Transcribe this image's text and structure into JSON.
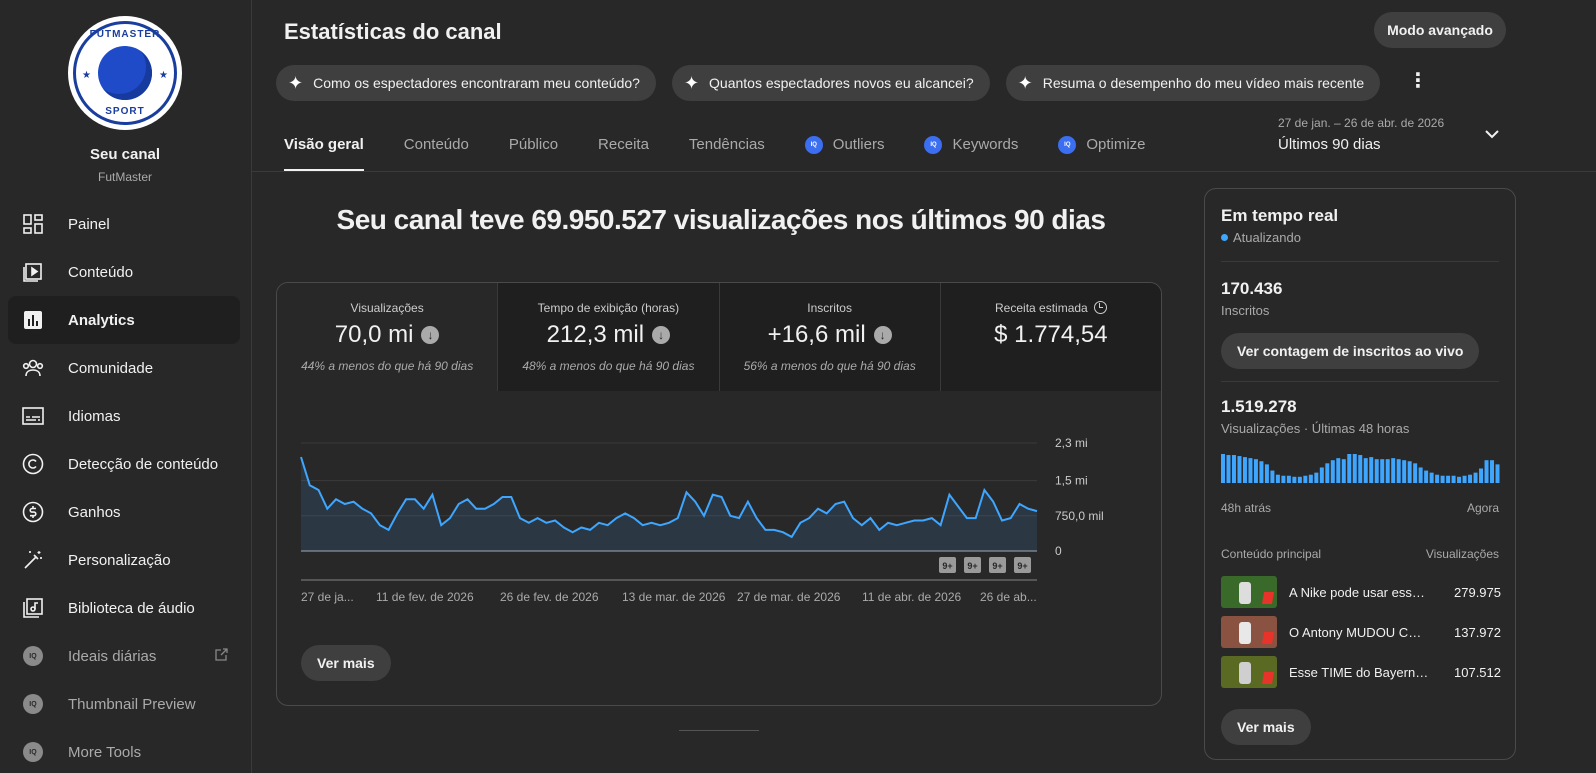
{
  "sidebar": {
    "logo_top": "FUTMASTER",
    "logo_bottom": "SPORT",
    "channel_title": "Seu canal",
    "channel_name": "FutMaster",
    "items": [
      {
        "label": "Painel",
        "icon": "dashboard-icon"
      },
      {
        "label": "Conteúdo",
        "icon": "content-icon"
      },
      {
        "label": "Analytics",
        "icon": "analytics-icon",
        "active": true
      },
      {
        "label": "Comunidade",
        "icon": "community-icon"
      },
      {
        "label": "Idiomas",
        "icon": "subtitles-icon"
      },
      {
        "label": "Detecção de conteúdo",
        "icon": "copyright-icon"
      },
      {
        "label": "Ganhos",
        "icon": "dollar-icon"
      },
      {
        "label": "Personalização",
        "icon": "magic-wand-icon"
      },
      {
        "label": "Biblioteca de áudio",
        "icon": "audio-library-icon"
      }
    ],
    "tools": [
      {
        "label": "Ideais diárias",
        "icon": "vidiq-icon",
        "external": true
      },
      {
        "label": "Thumbnail Preview",
        "icon": "vidiq-icon"
      },
      {
        "label": "More Tools",
        "icon": "vidiq-icon"
      }
    ]
  },
  "header": {
    "title": "Estatísticas do canal",
    "advanced_button": "Modo avançado",
    "chips": [
      "Como os espectadores encontraram meu conteúdo?",
      "Quantos espectadores novos eu alcancei?",
      "Resuma o desempenho do meu vídeo mais recente"
    ],
    "tabs": [
      {
        "label": "Visão geral",
        "active": true
      },
      {
        "label": "Conteúdo"
      },
      {
        "label": "Público"
      },
      {
        "label": "Receita"
      },
      {
        "label": "Tendências"
      },
      {
        "label": "Outliers",
        "icon": "vidiq-icon"
      },
      {
        "label": "Keywords",
        "icon": "vidiq-icon"
      },
      {
        "label": "Optimize",
        "icon": "vidiq-icon"
      }
    ],
    "date_range_sub": "27 de jan. – 26 de abr. de 2026",
    "date_range_main": "Últimos 90 dias"
  },
  "headline": "Seu canal teve 69.950.527 visualizações nos últimos 90 dias",
  "metrics": [
    {
      "label": "Visualizações",
      "value": "70,0 mi",
      "trend": "down",
      "note": "44% a menos do que há 90 dias"
    },
    {
      "label": "Tempo de exibição (horas)",
      "value": "212,3 mil",
      "trend": "down",
      "note": "48% a menos do que há 90 dias"
    },
    {
      "label": "Inscritos",
      "value": "+16,6 mil",
      "trend": "down",
      "note": "56% a menos do que há 90 dias"
    },
    {
      "label": "Receita estimada",
      "value": "$ 1.774,54",
      "note": ""
    }
  ],
  "main_more_button": "Ver mais",
  "chart_data": {
    "type": "area",
    "series": [
      {
        "values": [
          2000000,
          1400000,
          1300000,
          900000,
          1100000,
          1000000,
          1050000,
          900000,
          800000,
          550000,
          450000,
          800000,
          1100000,
          1100000,
          900000,
          1200000,
          550000,
          700000,
          1000000,
          1100000,
          900000,
          900000,
          1000000,
          1150000,
          1150000,
          700000,
          600000,
          700000,
          600000,
          650000,
          500000,
          400000,
          500000,
          450000,
          600000,
          550000,
          700000,
          800000,
          700000,
          550000,
          600000,
          550000,
          600000,
          700000,
          1250000,
          1050000,
          750000,
          1200000,
          1150000,
          750000,
          700000,
          1050000,
          700000,
          450000,
          450000,
          400000,
          300000,
          600000,
          700000,
          900000,
          800000,
          1000000,
          1050000,
          700000,
          550000,
          700000,
          450000,
          600000,
          550000,
          600000,
          650000,
          650000,
          700000,
          550000,
          1200000,
          950000,
          700000,
          700000,
          1300000,
          1050000,
          650000,
          700000,
          1000000,
          900000,
          850000
        ]
      }
    ],
    "y_ticks": [
      "2,3 mi",
      "1,5 mi",
      "750,0 mil",
      "0"
    ],
    "ylim": [
      0,
      2300000
    ],
    "x_ticks": [
      "27 de ja...",
      "11 de fev. de 2026",
      "26 de fev. de 2026",
      "13 de mar. de 2026",
      "27 de mar. de 2026",
      "11 de abr. de 2026",
      "26 de ab..."
    ],
    "badges": [
      "9+",
      "9+",
      "9+",
      "9+"
    ],
    "line_color": "#3ea6ff"
  },
  "realtime": {
    "title": "Em tempo real",
    "status": "Atualizando",
    "subscribers_value": "170.436",
    "subscribers_label": "Inscritos",
    "live_button": "Ver contagem de inscritos ao vivo",
    "views_value": "1.519.278",
    "views_label": "Visualizações · Últimas 48 horas",
    "hourly_views": [
      28,
      27,
      27,
      26,
      25,
      24,
      23,
      21,
      18,
      12,
      8,
      7,
      7,
      6,
      6,
      7,
      8,
      10,
      15,
      19,
      22,
      24,
      23,
      28,
      28,
      27,
      24,
      25,
      23,
      23,
      23,
      24,
      23,
      22,
      21,
      19,
      15,
      12,
      10,
      8,
      7,
      7,
      7,
      6,
      7,
      8,
      10,
      14,
      22,
      22,
      18
    ],
    "bar_color": "#3ea6ff",
    "axis_left": "48h atrás",
    "axis_right": "Agora",
    "top_content_header": "Conteúdo principal",
    "top_content_metric": "Visualizações",
    "top_content": [
      {
        "title": "A Nike pode usar essa...",
        "views": "279.975",
        "thumb_color": "#3a6a2a"
      },
      {
        "title": "O Antony MUDOU CO...",
        "views": "137.972",
        "thumb_color": "#8a5240"
      },
      {
        "title": "Esse TIME do Bayern ...",
        "views": "107.512",
        "thumb_color": "#5a6a22"
      }
    ],
    "more_button": "Ver mais"
  }
}
